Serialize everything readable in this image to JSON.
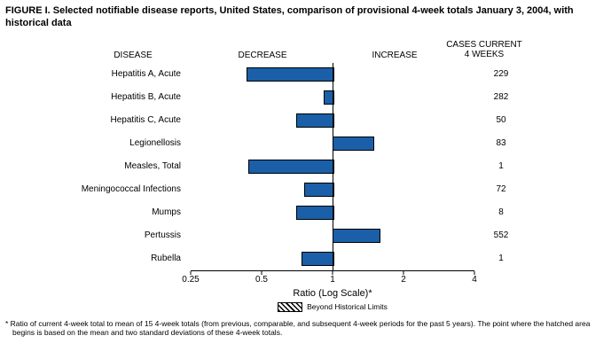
{
  "title": "FIGURE I. Selected notifiable disease reports, United States, comparison of provisional 4-week totals January 3, 2004, with historical data",
  "headers": {
    "disease": "DISEASE",
    "decrease": "DECREASE",
    "increase": "INCREASE",
    "cases_line1": "CASES CURRENT",
    "cases_line2": "4 WEEKS"
  },
  "chart_data": {
    "type": "bar",
    "orientation": "horizontal",
    "scale": "log",
    "title": "Selected notifiable disease reports, comparison of provisional 4-week totals January 3, 2004, with historical data",
    "xlabel": "Ratio (Log Scale)*",
    "x_ticks": [
      0.25,
      0.5,
      1,
      2,
      4
    ],
    "x_tick_labels": [
      "0.25",
      "0.5",
      "1",
      "2",
      "4"
    ],
    "xlim": [
      0.25,
      4
    ],
    "baseline": 1,
    "bar_color": "#1a5fa8",
    "categories": [
      "Hepatitis A, Acute",
      "Hepatitis B, Acute",
      "Hepatitis C, Acute",
      "Legionellosis",
      "Measles, Total",
      "Meningococcal Infections",
      "Mumps",
      "Pertussis",
      "Rubella"
    ],
    "ratios": [
      0.43,
      0.92,
      0.7,
      1.48,
      0.44,
      0.76,
      0.7,
      1.57,
      0.74
    ],
    "cases_current_4_weeks": [
      229,
      282,
      50,
      83,
      1,
      72,
      8,
      552,
      1
    ],
    "beyond_historical_limits": [
      false,
      false,
      false,
      false,
      false,
      false,
      false,
      false,
      false
    ]
  },
  "legend": {
    "label": "Beyond Historical Limits"
  },
  "footnote": "* Ratio of current 4-week total to mean of 15 4-week totals (from previous, comparable, and subsequent 4-week periods for the past 5 years). The point where the hatched area begins is based on the mean and two standard deviations of these 4-week totals."
}
